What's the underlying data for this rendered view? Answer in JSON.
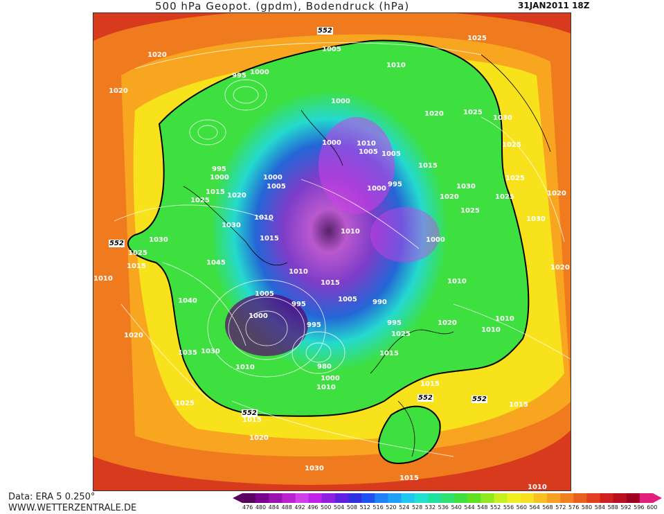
{
  "header": {
    "title": "500 hPa Geopot. (gpdm), Bodendruck (hPa)",
    "date": "31JAN2011  18Z"
  },
  "footer": {
    "data_source": "Data: ERA 5 0.250°",
    "website": "WWW.WETTERZENTRALE.DE"
  },
  "colorbar": {
    "labels": [
      "476",
      "480",
      "484",
      "488",
      "492",
      "496",
      "500",
      "504",
      "508",
      "512",
      "516",
      "520",
      "524",
      "528",
      "532",
      "536",
      "540",
      "544",
      "548",
      "552",
      "556",
      "560",
      "564",
      "568",
      "572",
      "576",
      "580",
      "584",
      "588",
      "592",
      "596",
      "600"
    ],
    "colors": [
      "#5a0060",
      "#7a0090",
      "#9a10b0",
      "#b820d0",
      "#d040e8",
      "#c020e8",
      "#9020e0",
      "#6020e0",
      "#3030e0",
      "#2050f0",
      "#2080f8",
      "#20a0f8",
      "#20c8f0",
      "#20e0d0",
      "#20e0a0",
      "#30e070",
      "#40e040",
      "#60e020",
      "#90e820",
      "#c8f020",
      "#f0f020",
      "#f8e020",
      "#f8c020",
      "#f8a020",
      "#f08020",
      "#e86020",
      "#e04020",
      "#d02020",
      "#b81020",
      "#a00020",
      "#e0207a"
    ]
  },
  "map": {
    "colors": {
      "outer_red": "#d83a1e",
      "orange": "#f07a1e",
      "light_orange": "#f8a620",
      "yellow": "#f8e21c",
      "green": "#3ee040",
      "cyan": "#20d8e8",
      "blue": "#2050f0",
      "purple": "#8820e0",
      "magenta": "#d040e8",
      "dark_purple": "#5a0070"
    },
    "contour_552_label": "552",
    "pressure_labels": [
      "1020",
      "1020",
      "1005",
      "995",
      "1000",
      "1000",
      "1010",
      "1025",
      "1020",
      "1025",
      "1030",
      "995",
      "1000",
      "1000",
      "1005",
      "1005",
      "1000",
      "1005",
      "1010",
      "1015",
      "1025",
      "1015",
      "1020",
      "1000",
      "995",
      "1030",
      "1020",
      "1025",
      "1025",
      "1020",
      "1025",
      "1030",
      "1010",
      "1025",
      "1030",
      "1030",
      "1010",
      "1045",
      "1000",
      "1015",
      "1010",
      "1020",
      "1015",
      "1025",
      "1010",
      "1015",
      "1040",
      "1005",
      "995",
      "1000",
      "1005",
      "990",
      "995",
      "1025",
      "1020",
      "1010",
      "1010",
      "1020",
      "1035",
      "1030",
      "1010",
      "995",
      "980",
      "1000",
      "1010",
      "1015",
      "1010",
      "1015",
      "1025",
      "1020",
      "1030",
      "1015",
      "1010",
      "1015",
      "1015"
    ]
  }
}
